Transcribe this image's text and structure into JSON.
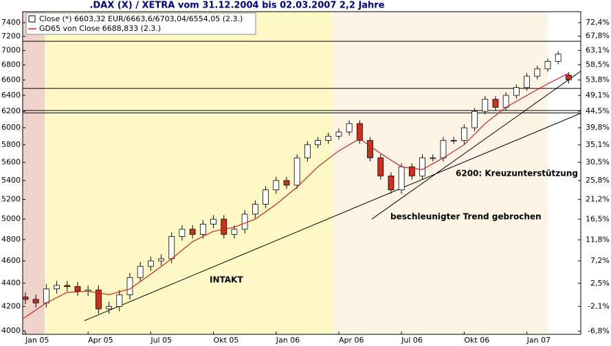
{
  "chart_data": {
    "type": "candlestick",
    "title": ".DAX (X) / XETRA vom 31.12.2004 bis 02.03.2007 2,2 Jahre",
    "ylog": true,
    "ylim": [
      3973,
      7564
    ],
    "yticks": [
      4000,
      4200,
      4400,
      4600,
      4800,
      5000,
      5200,
      5400,
      5600,
      5800,
      6000,
      6200,
      6400,
      6600,
      6800,
      7000,
      7200,
      7400
    ],
    "y2lim": [
      -7.4,
      76.2
    ],
    "y2ticks": [
      {
        "value": -6.8,
        "label": "-6,8%"
      },
      {
        "value": -2.1,
        "label": "-2,1%"
      },
      {
        "value": 2.5,
        "label": "2,5%"
      },
      {
        "value": 7.2,
        "label": "7,2%"
      },
      {
        "value": 11.8,
        "label": "11,8%"
      },
      {
        "value": 16.5,
        "label": "16,5%"
      },
      {
        "value": 21.2,
        "label": "21,2%"
      },
      {
        "value": 25.8,
        "label": "25,8%"
      },
      {
        "value": 30.5,
        "label": "30,5%"
      },
      {
        "value": 35.1,
        "label": "35,1%"
      },
      {
        "value": 39.8,
        "label": "39,8%"
      },
      {
        "value": 44.5,
        "label": "44,5%"
      },
      {
        "value": 49.1,
        "label": "49,1%"
      },
      {
        "value": 53.8,
        "label": "53,8%"
      },
      {
        "value": 58.5,
        "label": "58,5%"
      },
      {
        "value": 63.1,
        "label": "63,1%"
      },
      {
        "value": 67.8,
        "label": "67,8%"
      },
      {
        "value": 72.4,
        "label": "72,4%"
      }
    ],
    "xlim": [
      -0.13,
      26.58
    ],
    "xticks": [
      {
        "value": 0,
        "label": "Jan 05"
      },
      {
        "value": 3,
        "label": "Apr 05"
      },
      {
        "value": 6,
        "label": "Jul 05"
      },
      {
        "value": 9,
        "label": "Okt 05"
      },
      {
        "value": 12,
        "label": "Jan 06"
      },
      {
        "value": 15,
        "label": "Apr 06"
      },
      {
        "value": 18,
        "label": "Jul 06"
      },
      {
        "value": 21,
        "label": "Okt 06"
      },
      {
        "value": 24,
        "label": "Jan 07"
      }
    ],
    "series": [
      {
        "name": "Close (*) 6603,32 EUR/6663,6/6703,04/6554,05 (2.3.)",
        "type": "candlestick",
        "up_color": "#ffffff",
        "down_color": "#c8321e",
        "x": [
          0,
          0.5,
          1,
          1.5,
          2,
          2.5,
          3,
          3.5,
          4,
          4.5,
          5,
          5.5,
          6,
          6.5,
          7,
          7.5,
          8,
          8.5,
          9,
          9.5,
          10,
          10.5,
          11,
          11.5,
          12,
          12.5,
          13,
          13.5,
          14,
          14.5,
          15,
          15.5,
          16,
          16.5,
          17,
          17.5,
          18,
          18.5,
          19,
          19.5,
          20,
          20.5,
          21,
          21.5,
          22,
          22.5,
          23,
          23.5,
          24,
          24.5,
          25,
          25.5,
          26
        ],
        "open": [
          4280,
          4260,
          4230,
          4350,
          4380,
          4370,
          4330,
          4340,
          4180,
          4200,
          4300,
          4450,
          4550,
          4600,
          4620,
          4830,
          4900,
          4850,
          4950,
          5000,
          4850,
          4900,
          5050,
          5150,
          5300,
          5400,
          5350,
          5650,
          5800,
          5850,
          5900,
          5950,
          6050,
          5850,
          5650,
          5450,
          5300,
          5550,
          5450,
          5650,
          5650,
          5850,
          5850,
          6000,
          6200,
          6350,
          6250,
          6400,
          6500,
          6650,
          6750,
          6850,
          6663.6
        ],
        "high": [
          4320,
          4300,
          4390,
          4420,
          4420,
          4410,
          4380,
          4380,
          4240,
          4340,
          4490,
          4590,
          4640,
          4660,
          4870,
          4940,
          4940,
          4990,
          5040,
          5040,
          4940,
          5090,
          5190,
          5340,
          5440,
          5440,
          5690,
          5840,
          5890,
          5940,
          5990,
          6090,
          6090,
          5890,
          5690,
          5490,
          5590,
          5590,
          5690,
          5690,
          5890,
          5890,
          6040,
          6240,
          6390,
          6390,
          6440,
          6540,
          6690,
          6790,
          6890,
          6990,
          6703.04
        ],
        "low": [
          4220,
          4190,
          4190,
          4310,
          4330,
          4290,
          4290,
          4140,
          4140,
          4160,
          4260,
          4410,
          4510,
          4560,
          4580,
          4790,
          4810,
          4810,
          4910,
          4810,
          4810,
          4860,
          5010,
          5110,
          5260,
          5310,
          5310,
          5610,
          5760,
          5810,
          5860,
          5910,
          5810,
          5610,
          5410,
          5260,
          5260,
          5410,
          5410,
          5610,
          5610,
          5810,
          5810,
          5960,
          6160,
          6210,
          6210,
          6360,
          6460,
          6610,
          6710,
          6810,
          6554.05
        ],
        "close": [
          4260,
          4230,
          4350,
          4380,
          4370,
          4330,
          4340,
          4180,
          4200,
          4300,
          4450,
          4550,
          4600,
          4620,
          4830,
          4900,
          4850,
          4950,
          5000,
          4850,
          4900,
          5050,
          5150,
          5300,
          5400,
          5350,
          5650,
          5800,
          5850,
          5900,
          5950,
          6050,
          5850,
          5650,
          5450,
          5300,
          5550,
          5450,
          5650,
          5650,
          5850,
          5850,
          6000,
          6200,
          6350,
          6250,
          6400,
          6500,
          6650,
          6750,
          6850,
          6950,
          6603.32
        ]
      },
      {
        "name": "GD65 von Close 6688,833 (2.3.)",
        "type": "line",
        "color": "#d02020",
        "x": [
          -0.1,
          1,
          2,
          3,
          4,
          5,
          6,
          7,
          8,
          9,
          10,
          11,
          12,
          13,
          14,
          15,
          16,
          17,
          18,
          19,
          20,
          21,
          22,
          23,
          24,
          25,
          26
        ],
        "values": [
          4100,
          4230,
          4320,
          4330,
          4300,
          4350,
          4480,
          4620,
          4780,
          4880,
          4920,
          5000,
          5150,
          5330,
          5550,
          5730,
          5870,
          5700,
          5550,
          5520,
          5650,
          5800,
          6050,
          6250,
          6400,
          6550,
          6689
        ]
      }
    ],
    "hlines": [
      7130,
      6490,
      6210,
      6180
    ],
    "trendlines": [
      {
        "x": [
          2.83,
          26.58
        ],
        "y": [
          4083,
          6176
        ]
      },
      {
        "x": [
          16.58,
          26.58
        ],
        "y": [
          5000,
          6717
        ]
      }
    ],
    "annotations": [
      "INTAKT",
      "beschleunigter Trend gebrochen",
      "6200: Kreuzunterstützung"
    ]
  }
}
